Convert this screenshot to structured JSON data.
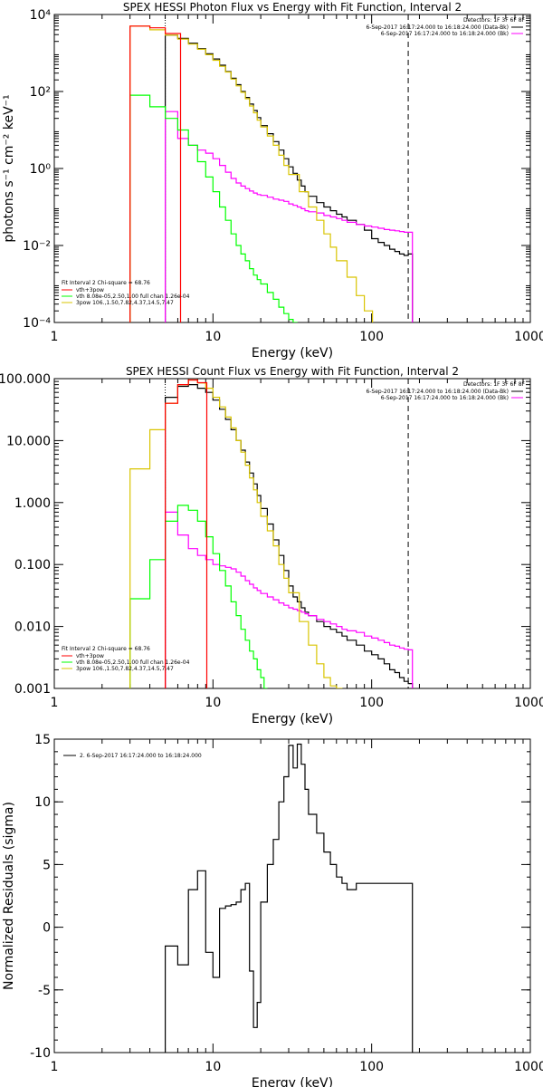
{
  "chart_data": [
    {
      "type": "line",
      "title": "SPEX HESSI Photon Flux vs Energy with Fit Function, Interval 2",
      "xlabel": "Energy (keV)",
      "ylabel": "photons s⁻¹ cm⁻² keV⁻¹",
      "xscale": "log",
      "yscale": "log",
      "xlim": [
        1,
        1000
      ],
      "ylim": [
        0.0001,
        10000
      ],
      "x_ticks": [
        "1",
        "10",
        "100",
        "1000"
      ],
      "y_ticks": [
        "10⁻⁴",
        "10⁻²",
        "10⁰",
        "10²",
        "10⁴"
      ],
      "y_tick_values": [
        0.0001,
        0.01,
        1,
        100,
        10000
      ],
      "fit_range_keV": [
        5.0,
        170
      ],
      "legend_upper": {
        "placement": "top-right",
        "header": "Detectors: 1F 3F 6F 8F",
        "entries": [
          {
            "text": "6-Sep-2017 16:17:24.000 to 16:18:24.000 (Data-Bk)",
            "color": "#000000"
          },
          {
            "text": "6-Sep-2017 16:17:24.000 to 16:18:24.000 (Bk)",
            "color": "#ff00ff"
          }
        ]
      },
      "legend_lower": {
        "placement": "bottom-left",
        "header": "Fit Interval 2   Chi-square = 68.76",
        "entries": [
          {
            "text": "vth+3pow",
            "color": "#ff0000"
          },
          {
            "text": "vth 8.08e-05,2.50,1.00  full chan 1.26e-04",
            "color": "#00ff00"
          },
          {
            "text": "3pow 106.,1.50,7.82,4.37,14.5,7.47",
            "color": "#d9c400"
          }
        ]
      },
      "series": [
        {
          "name": "Data-Bk",
          "color": "#000000",
          "x": [
            5.0,
            6.0,
            7.0,
            8.0,
            9.0,
            10.0,
            11.0,
            12.0,
            13.0,
            14.0,
            15.0,
            16.0,
            17.0,
            18.0,
            19.0,
            20.0,
            22.0,
            24.0,
            26.0,
            28.0,
            30.0,
            32.0,
            34.0,
            36.0,
            38.0,
            40.0,
            45.0,
            50.0,
            55.0,
            60.0,
            65.0,
            70.0,
            80.0,
            90.0,
            100.0,
            110.0,
            120.0,
            130.0,
            140.0,
            150.0,
            160.0,
            170.0
          ],
          "y": [
            2900,
            2400,
            1800,
            1300,
            950,
            700,
            480,
            330,
            220,
            150,
            100,
            70,
            47,
            32,
            21,
            13,
            8,
            5,
            3,
            1.8,
            1.1,
            0.75,
            0.5,
            0.35,
            0.25,
            0.19,
            0.13,
            0.1,
            0.08,
            0.065,
            0.055,
            0.045,
            0.035,
            0.025,
            0.015,
            0.012,
            0.01,
            0.008,
            0.007,
            0.006,
            0.0055,
            0.006
          ]
        },
        {
          "name": "Bk",
          "color": "#ff00ff",
          "x": [
            5.0,
            6.0,
            7.0,
            8.0,
            9.0,
            10.0,
            11.0,
            12.0,
            13.0,
            14.0,
            15.0,
            16.0,
            17.0,
            18.0,
            19.0,
            20.0,
            22.0,
            24.0,
            26.0,
            28.0,
            30.0,
            32.0,
            34.0,
            36.0,
            38.0,
            40.0,
            45.0,
            50.0,
            55.0,
            60.0,
            65.0,
            70.0,
            80.0,
            90.0,
            100.0,
            110.0,
            120.0,
            130.0,
            140.0,
            150.0,
            160.0,
            170.0
          ],
          "y": [
            30,
            6,
            4,
            3,
            2.5,
            1.8,
            1.2,
            0.8,
            0.55,
            0.42,
            0.35,
            0.3,
            0.26,
            0.23,
            0.21,
            0.2,
            0.18,
            0.16,
            0.15,
            0.14,
            0.12,
            0.11,
            0.1,
            0.09,
            0.08,
            0.075,
            0.07,
            0.06,
            0.055,
            0.05,
            0.045,
            0.04,
            0.035,
            0.032,
            0.03,
            0.028,
            0.026,
            0.025,
            0.024,
            0.023,
            0.022,
            0.022
          ]
        },
        {
          "name": "vth",
          "color": "#00ff00",
          "x": [
            3.0,
            4.0,
            5.0,
            6.0,
            7.0,
            8.0,
            9.0,
            10.0,
            11.0,
            12.0,
            13.0,
            14.0,
            15.0,
            16.0,
            17.0,
            18.0,
            19.0,
            20.0,
            22.0,
            24.0,
            26.0,
            28.0,
            30.0,
            32.0
          ],
          "y": [
            80,
            40,
            20,
            10,
            4,
            1.5,
            0.6,
            0.25,
            0.1,
            0.045,
            0.02,
            0.01,
            0.006,
            0.004,
            0.0025,
            0.0017,
            0.0013,
            0.001,
            0.0006,
            0.0004,
            0.00025,
            0.00017,
            0.00012,
            0.0001
          ]
        },
        {
          "name": "3pow",
          "color": "#d9c400",
          "x": [
            3.0,
            4.0,
            5.0,
            6.0,
            7.0,
            8.0,
            9.0,
            10.0,
            11.0,
            12.0,
            13.0,
            14.0,
            15.0,
            16.0,
            17.0,
            18.0,
            19.0,
            20.0,
            22.0,
            24.0,
            26.0,
            28.0,
            30.0,
            35.0,
            40.0,
            45.0,
            50.0,
            55.0,
            60.0,
            70.0,
            80.0,
            90.0
          ],
          "y": [
            5000,
            4000,
            2900,
            2300,
            1700,
            1250,
            900,
            650,
            450,
            320,
            210,
            140,
            95,
            65,
            42,
            28,
            18,
            12,
            7,
            4,
            2.2,
            1.2,
            0.7,
            0.25,
            0.1,
            0.045,
            0.02,
            0.009,
            0.004,
            0.0015,
            0.0005,
            0.0002
          ]
        },
        {
          "name": "vth+3pow",
          "color": "#ff0000",
          "x": [
            3.0,
            4.0,
            5.0
          ],
          "y": [
            5000,
            4500,
            3200
          ]
        }
      ]
    },
    {
      "type": "line",
      "title": "SPEX HESSI Count Flux vs Energy with Fit Function, Interval 2",
      "xlabel": "Energy (keV)",
      "ylabel": "",
      "xscale": "log",
      "yscale": "log",
      "xlim": [
        1,
        1000
      ],
      "ylim": [
        0.001,
        100
      ],
      "x_ticks": [
        "1",
        "10",
        "100",
        "1000"
      ],
      "y_ticks": [
        "0.001",
        "0.010",
        "0.100",
        "1.000",
        "10.000",
        "100.000"
      ],
      "y_tick_values": [
        0.001,
        0.01,
        0.1,
        1,
        10,
        100
      ],
      "fit_range_keV": [
        5.0,
        170
      ],
      "legend_upper": {
        "placement": "top-right",
        "header": "Detectors: 1F 3F 6F 8F",
        "entries": [
          {
            "text": "6-Sep-2017 16:17:24.000 to 16:18:24.000 (Data-Bk)",
            "color": "#000000"
          },
          {
            "text": "6-Sep-2017 16:17:24.000 to 16:18:24.000 (Bk)",
            "color": "#ff00ff"
          }
        ]
      },
      "legend_lower": {
        "placement": "bottom-left",
        "header": "Fit Interval 2   Chi-square = 68.76",
        "entries": [
          {
            "text": "vth+3pow",
            "color": "#ff0000"
          },
          {
            "text": "vth 8.08e-05,2.50,1.00  full chan 1.26e-04",
            "color": "#00ff00"
          },
          {
            "text": "3pow 106.,1.50,7.82,4.37,14.5,7.47",
            "color": "#d9c400"
          }
        ]
      },
      "series": [
        {
          "name": "Data-Bk",
          "color": "#000000",
          "x": [
            5.0,
            6.0,
            7.0,
            8.0,
            9.0,
            10.0,
            11.0,
            12.0,
            13.0,
            14.0,
            15.0,
            16.0,
            17.0,
            18.0,
            19.0,
            20.0,
            22.0,
            24.0,
            26.0,
            28.0,
            30.0,
            32.0,
            34.0,
            36.0,
            38.0,
            40.0,
            45.0,
            50.0,
            55.0,
            60.0,
            65.0,
            70.0,
            80.0,
            90.0,
            100.0,
            110.0,
            120.0,
            130.0,
            140.0,
            150.0,
            160.0,
            170.0
          ],
          "y": [
            50,
            75,
            80,
            70,
            60,
            45,
            32,
            22,
            15,
            10,
            7,
            4.5,
            3,
            2,
            1.3,
            0.8,
            0.45,
            0.25,
            0.14,
            0.08,
            0.045,
            0.03,
            0.025,
            0.02,
            0.017,
            0.015,
            0.012,
            0.01,
            0.009,
            0.008,
            0.007,
            0.006,
            0.005,
            0.004,
            0.0035,
            0.003,
            0.0025,
            0.002,
            0.0018,
            0.0015,
            0.0013,
            0.0012
          ]
        },
        {
          "name": "Bk",
          "color": "#ff00ff",
          "x": [
            5.0,
            6.0,
            7.0,
            8.0,
            9.0,
            10.0,
            11.0,
            12.0,
            13.0,
            14.0,
            15.0,
            16.0,
            17.0,
            18.0,
            19.0,
            20.0,
            22.0,
            24.0,
            26.0,
            28.0,
            30.0,
            32.0,
            34.0,
            36.0,
            38.0,
            40.0,
            45.0,
            50.0,
            55.0,
            60.0,
            65.0,
            70.0,
            80.0,
            90.0,
            100.0,
            110.0,
            120.0,
            130.0,
            140.0,
            150.0,
            160.0,
            170.0
          ],
          "y": [
            0.7,
            0.3,
            0.18,
            0.14,
            0.12,
            0.1,
            0.095,
            0.09,
            0.085,
            0.075,
            0.065,
            0.055,
            0.048,
            0.042,
            0.038,
            0.034,
            0.03,
            0.027,
            0.024,
            0.022,
            0.02,
            0.019,
            0.018,
            0.017,
            0.016,
            0.015,
            0.013,
            0.012,
            0.011,
            0.01,
            0.009,
            0.0085,
            0.008,
            0.007,
            0.0065,
            0.006,
            0.0055,
            0.005,
            0.0048,
            0.0045,
            0.0043,
            0.0042
          ]
        },
        {
          "name": "vth",
          "color": "#00ff00",
          "x": [
            3.0,
            4.0,
            5.0,
            6.0,
            7.0,
            8.0,
            9.0,
            10.0,
            11.0,
            12.0,
            13.0,
            14.0,
            15.0,
            16.0,
            17.0,
            18.0,
            19.0,
            20.0,
            21.0
          ],
          "y": [
            0.028,
            0.12,
            0.5,
            0.9,
            0.75,
            0.5,
            0.28,
            0.15,
            0.08,
            0.045,
            0.025,
            0.015,
            0.009,
            0.006,
            0.004,
            0.003,
            0.002,
            0.0015,
            0.001
          ]
        },
        {
          "name": "3pow",
          "color": "#d9c400",
          "x": [
            3.0,
            4.0,
            5.0,
            6.0,
            7.0,
            8.0,
            9.0,
            10.0,
            11.0,
            12.0,
            13.0,
            14.0,
            15.0,
            16.0,
            17.0,
            18.0,
            19.0,
            20.0,
            22.0,
            24.0,
            26.0,
            28.0,
            30.0,
            35.0,
            40.0,
            45.0,
            50.0,
            55.0,
            60.0
          ],
          "y": [
            3.5,
            15,
            40,
            80,
            95,
            85,
            70,
            50,
            35,
            24,
            16,
            10,
            6.5,
            4,
            2.5,
            1.6,
            1,
            0.6,
            0.35,
            0.2,
            0.1,
            0.06,
            0.035,
            0.012,
            0.005,
            0.0025,
            0.0015,
            0.0011,
            0.001
          ]
        },
        {
          "name": "vth+3pow",
          "color": "#ff0000",
          "x": [
            5.0,
            6.0,
            7.0,
            8.0
          ],
          "y": [
            40,
            80,
            95,
            86
          ]
        }
      ]
    },
    {
      "type": "line",
      "title": "",
      "xlabel": "Energy (keV)",
      "ylabel": "Normalized Residuals (sigma)",
      "xscale": "log",
      "yscale": "linear",
      "xlim": [
        1,
        1000
      ],
      "ylim": [
        -10,
        15
      ],
      "x_ticks": [
        "1",
        "10",
        "100",
        "1000"
      ],
      "y_ticks": [
        "-10",
        "-5",
        "0",
        "5",
        "10",
        "15"
      ],
      "y_tick_values": [
        -10,
        -5,
        0,
        5,
        10,
        15
      ],
      "legend": {
        "placement": "top-left",
        "entries": [
          {
            "text": "2.  6-Sep-2017 16:17:24.000 to 16:18:24.000",
            "color": "#000000"
          }
        ]
      },
      "series": [
        {
          "name": "",
          "color": "#000000",
          "x": [
            5.0,
            6.0,
            7.0,
            8.0,
            9.0,
            10.0,
            11.0,
            12.0,
            13.0,
            14.0,
            15.0,
            16.0,
            17.0,
            18.0,
            19.0,
            20.0,
            22.0,
            24.0,
            26.0,
            28.0,
            30.0,
            32.0,
            34.0,
            36.0,
            38.0,
            40.0,
            45.0,
            50.0,
            55.0,
            60.0,
            65.0,
            70.0,
            80.0,
            90.0,
            100.0,
            110.0,
            120.0,
            130.0,
            140.0,
            150.0,
            160.0,
            170.0
          ],
          "y": [
            -1.5,
            -3,
            3,
            4.5,
            -2,
            -4,
            1.5,
            1.7,
            1.8,
            2,
            3,
            3.5,
            -3.5,
            -8,
            -6,
            2,
            5,
            7,
            10,
            12,
            14.5,
            12.7,
            14.6,
            13,
            11,
            9,
            7.5,
            6,
            5,
            4,
            3.5,
            3,
            3.5,
            3.5,
            3.5,
            3.5,
            3.5,
            3.5,
            3.5,
            3.5,
            3.5,
            3.5
          ]
        }
      ]
    }
  ]
}
